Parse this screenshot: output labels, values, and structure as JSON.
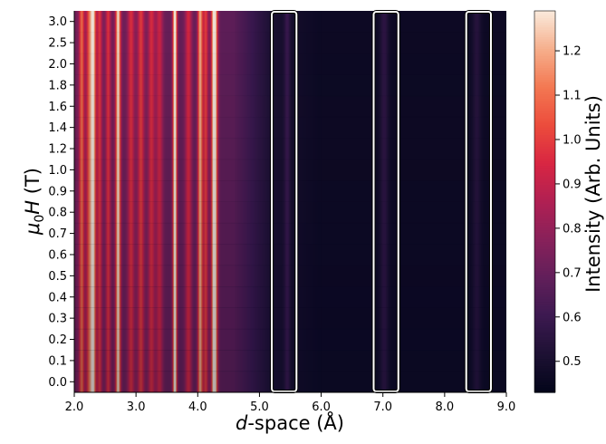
{
  "chart_data": {
    "type": "heatmap",
    "title": "",
    "xlabel_italic": "d",
    "xlabel_rest": "-space (Å)",
    "ylabel_mu": "μ",
    "ylabel_sub": "0",
    "ylabel_H": "H",
    "ylabel_unit": " (T)",
    "xlim": [
      2.0,
      9.0
    ],
    "x_ticks": [
      "2.0",
      "3.0",
      "4.0",
      "5.0",
      "6.0",
      "7.0",
      "8.0",
      "9.0"
    ],
    "y_ticks": [
      "0.0",
      "0.1",
      "0.2",
      "0.3",
      "0.4",
      "0.5",
      "0.6",
      "0.7",
      "0.8",
      "0.9",
      "1.0",
      "1.2",
      "1.4",
      "1.6",
      "1.8",
      "2.0",
      "2.5",
      "3.0"
    ],
    "colorbar": {
      "label": "Intensity (Arb. Units)",
      "range": [
        0.43,
        1.29
      ],
      "ticks": [
        "0.5",
        "0.6",
        "0.7",
        "0.8",
        "0.9",
        "1.0",
        "1.1",
        "1.2"
      ],
      "tick_values": [
        0.5,
        0.6,
        0.7,
        0.8,
        0.9,
        1.0,
        1.1,
        1.2
      ],
      "colormap": "rocket"
    },
    "highlight_boxes": [
      {
        "d_min": 5.2,
        "d_max": 5.6
      },
      {
        "d_min": 6.85,
        "d_max": 7.25
      },
      {
        "d_min": 8.35,
        "d_max": 8.75
      }
    ],
    "peaks": [
      {
        "d": 2.12,
        "width": 0.03,
        "amp": 0.35
      },
      {
        "d": 2.25,
        "width": 0.04,
        "amp": 0.35
      },
      {
        "d": 2.31,
        "width": 0.03,
        "amp": 0.45
      },
      {
        "d": 2.41,
        "width": 0.03,
        "amp": 0.25
      },
      {
        "d": 2.55,
        "width": 0.03,
        "amp": 0.25
      },
      {
        "d": 2.71,
        "width": 0.03,
        "amp": 0.55
      },
      {
        "d": 2.92,
        "width": 0.04,
        "amp": 0.25
      },
      {
        "d": 3.08,
        "width": 0.04,
        "amp": 0.28
      },
      {
        "d": 3.25,
        "width": 0.04,
        "amp": 0.25
      },
      {
        "d": 3.38,
        "width": 0.04,
        "amp": 0.22
      },
      {
        "d": 3.63,
        "width": 0.025,
        "amp": 0.65
      },
      {
        "d": 3.85,
        "width": 0.04,
        "amp": 0.25
      },
      {
        "d": 4.04,
        "width": 0.03,
        "amp": 0.5
      },
      {
        "d": 4.13,
        "width": 0.03,
        "amp": 0.3
      },
      {
        "d": 4.27,
        "width": 0.035,
        "amp": 0.7
      },
      {
        "d": 5.45,
        "width": 0.035,
        "amp": 0.1
      },
      {
        "d": 7.02,
        "width": 0.05,
        "amp": 0.1
      },
      {
        "d": 8.52,
        "width": 0.05,
        "amp": 0.08
      }
    ]
  }
}
